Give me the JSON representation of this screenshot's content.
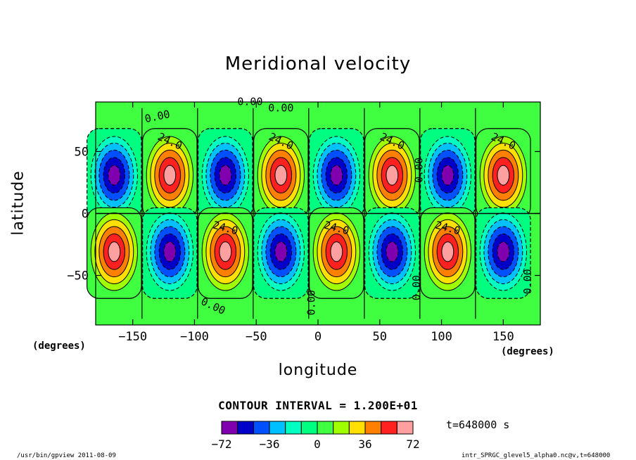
{
  "chart_data": {
    "type": "heatmap",
    "title": "Meridional velocity",
    "xlabel": "longitude",
    "ylabel": "latitude",
    "x_unit": "(degrees)",
    "y_unit": "(degrees)",
    "xlim": [
      -180,
      180
    ],
    "ylim": [
      -90,
      90
    ],
    "x_ticks": [
      "-150",
      "-100",
      "-50",
      "0",
      "50",
      "100",
      "150"
    ],
    "y_ticks": [
      "50",
      "0",
      "-50"
    ],
    "contour_interval_text": "CONTOUR INTERVAL = 1.200E+01",
    "contour_labels": [
      "0.00",
      "24.0"
    ],
    "colorbar": {
      "levels": [
        -72,
        -60,
        -48,
        -36,
        -24,
        -12,
        0,
        12,
        24,
        36,
        48,
        60,
        72
      ],
      "tick_labels": [
        "-72",
        "-36",
        "0",
        "36",
        "72"
      ],
      "colors": [
        "#8000b0",
        "#0000c8",
        "#0050ff",
        "#00c0ff",
        "#00ffc0",
        "#00ff80",
        "#40ff40",
        "#a0ff00",
        "#ffe000",
        "#ff8000",
        "#ff2020",
        "#ffa0a0"
      ]
    },
    "cells": [
      {
        "lon": -165,
        "lat": 32,
        "sign": -1,
        "peak": 72
      },
      {
        "lon": -120,
        "lat": 32,
        "sign": 1,
        "peak": 72
      },
      {
        "lon": -75,
        "lat": 32,
        "sign": -1,
        "peak": 72
      },
      {
        "lon": -30,
        "lat": 32,
        "sign": 1,
        "peak": 72
      },
      {
        "lon": 15,
        "lat": 32,
        "sign": -1,
        "peak": 72
      },
      {
        "lon": 60,
        "lat": 32,
        "sign": 1,
        "peak": 72
      },
      {
        "lon": 105,
        "lat": 32,
        "sign": -1,
        "peak": 72
      },
      {
        "lon": 150,
        "lat": 32,
        "sign": 1,
        "peak": 72
      },
      {
        "lon": -165,
        "lat": -32,
        "sign": 1,
        "peak": 72
      },
      {
        "lon": -120,
        "lat": -32,
        "sign": -1,
        "peak": 72
      },
      {
        "lon": -75,
        "lat": -32,
        "sign": 1,
        "peak": 72
      },
      {
        "lon": -30,
        "lat": -32,
        "sign": -1,
        "peak": 72
      },
      {
        "lon": 15,
        "lat": -32,
        "sign": 1,
        "peak": 72
      },
      {
        "lon": 60,
        "lat": -32,
        "sign": -1,
        "peak": 72
      },
      {
        "lon": 105,
        "lat": -32,
        "sign": 1,
        "peak": 72
      },
      {
        "lon": 150,
        "lat": -32,
        "sign": -1,
        "peak": 72
      }
    ]
  },
  "annotations": {
    "time": "t=648000 s",
    "footer_left": "/usr/bin/gpview  2011-08-09",
    "footer_right": "intr_SPRGC_glevel5_alpha0.nc@v,t=648000"
  }
}
